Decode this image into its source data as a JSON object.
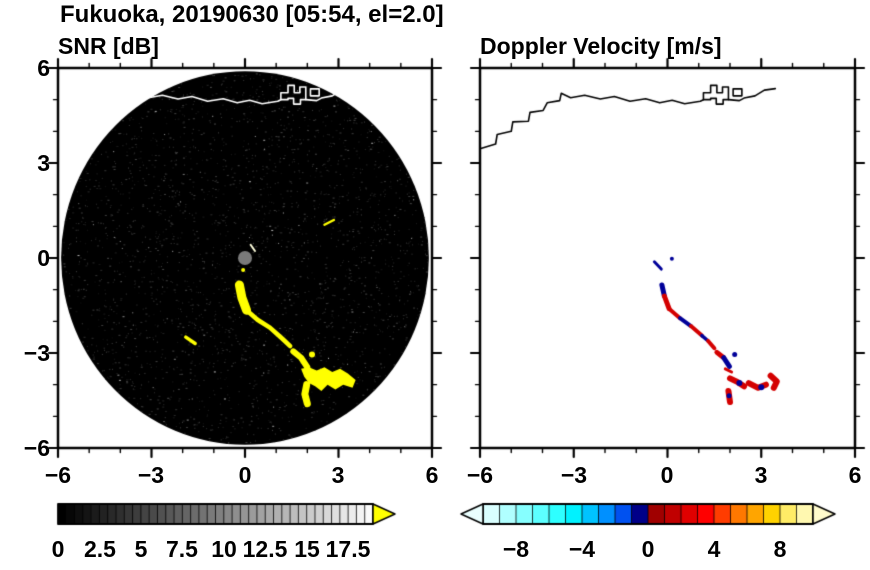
{
  "title": "Fukuoka, 20190630 [05:54, el=2.0]",
  "panels": {
    "snr": {
      "title": "SNR [dB]",
      "x_ticks": [
        "−6",
        "−3",
        "0",
        "3",
        "6"
      ],
      "y_ticks": [
        "6",
        "3",
        "0",
        "−3",
        "−6"
      ],
      "colorbar_labels": [
        "0",
        "2.5",
        "5",
        "7.5",
        "10",
        "12.5",
        "15",
        "17.5"
      ]
    },
    "doppler": {
      "title": "Doppler Velocity [m/s]",
      "x_ticks": [
        "−6",
        "−3",
        "0",
        "3",
        "6"
      ],
      "colorbar_labels": [
        "−8",
        "−4",
        "0",
        "4",
        "8"
      ]
    }
  },
  "axes": {
    "xlim": [
      -6,
      6
    ],
    "ylim": [
      -6,
      6
    ],
    "major_ticks": [
      -6,
      -3,
      0,
      3,
      6
    ],
    "minor_tick_step": 1
  },
  "coastline": {
    "main": [
      [
        -6.0,
        3.45
      ],
      [
        -5.5,
        3.6
      ],
      [
        -5.45,
        3.9
      ],
      [
        -5.0,
        4.0
      ],
      [
        -4.95,
        4.3
      ],
      [
        -4.45,
        4.32
      ],
      [
        -4.4,
        4.6
      ],
      [
        -3.98,
        4.66
      ],
      [
        -3.85,
        4.9
      ],
      [
        -3.45,
        4.97
      ],
      [
        -3.4,
        5.2
      ],
      [
        -3.1,
        5.06
      ],
      [
        -2.65,
        5.14
      ],
      [
        -2.15,
        5.02
      ],
      [
        -1.7,
        5.1
      ],
      [
        -1.2,
        4.95
      ],
      [
        -0.7,
        5.03
      ],
      [
        -0.25,
        4.9
      ],
      [
        0.15,
        4.98
      ],
      [
        0.55,
        4.87
      ],
      [
        1.05,
        4.95
      ],
      [
        1.15,
        5.0
      ]
    ],
    "east": [
      [
        1.95,
        5.0
      ],
      [
        2.3,
        4.97
      ],
      [
        2.45,
        5.05
      ],
      [
        2.8,
        5.12
      ],
      [
        3.1,
        5.3
      ],
      [
        3.45,
        5.35
      ]
    ],
    "harbor": [
      [
        1.15,
        5.0
      ],
      [
        1.15,
        5.22
      ],
      [
        1.38,
        5.22
      ],
      [
        1.38,
        5.45
      ],
      [
        1.58,
        5.45
      ],
      [
        1.58,
        5.22
      ],
      [
        1.76,
        5.22
      ],
      [
        1.76,
        5.4
      ],
      [
        1.95,
        5.4
      ],
      [
        1.95,
        5.0
      ],
      [
        1.78,
        5.0
      ],
      [
        1.78,
        4.86
      ],
      [
        1.56,
        4.86
      ],
      [
        1.56,
        5.04
      ],
      [
        1.38,
        5.04
      ],
      [
        1.38,
        5.0
      ]
    ],
    "islet": [
      [
        2.1,
        5.12
      ],
      [
        2.38,
        5.12
      ],
      [
        2.38,
        5.34
      ],
      [
        2.1,
        5.34
      ]
    ]
  },
  "chart_data": [
    {
      "type": "heatmap",
      "title": "SNR [dB]",
      "xlim": [
        -6,
        6
      ],
      "ylim": [
        -6,
        6
      ],
      "x_ticks": [
        -6,
        -3,
        0,
        3,
        6
      ],
      "y_ticks": [
        -6,
        -3,
        0,
        3,
        6
      ],
      "scan_disk": {
        "center": [
          0,
          0
        ],
        "radius": 5.9,
        "background_color": "#000000"
      },
      "center_marker": {
        "x": 0,
        "y": 0,
        "color": "#7a7a7a",
        "radius_px": 7
      },
      "colorbar": {
        "min": 0,
        "max": 19,
        "step": 0.5,
        "tick_labels": [
          0,
          2.5,
          5,
          7.5,
          10,
          12.5,
          15,
          17.5
        ],
        "palette": "black-to-white",
        "over_arrow_color": "#ffff00"
      },
      "echoes": [
        {
          "kind": "stroke",
          "w": 9,
          "pts": [
            [
              -0.18,
              -0.85
            ],
            [
              -0.1,
              -1.25
            ],
            [
              0.05,
              -1.65
            ]
          ]
        },
        {
          "kind": "stroke",
          "w": 4.5,
          "pts": [
            [
              0.05,
              -1.65
            ],
            [
              0.4,
              -1.95
            ],
            [
              0.8,
              -2.2
            ],
            [
              1.2,
              -2.55
            ],
            [
              1.45,
              -2.78
            ]
          ]
        },
        {
          "kind": "stroke",
          "w": 6,
          "pts": [
            [
              1.55,
              -2.95
            ],
            [
              1.8,
              -3.15
            ],
            [
              2.0,
              -3.45
            ]
          ]
        },
        {
          "kind": "dot",
          "r": 3,
          "pt": [
            2.15,
            -3.05
          ]
        },
        {
          "kind": "poly",
          "pts": [
            [
              1.8,
              -3.5
            ],
            [
              2.05,
              -3.45
            ],
            [
              2.3,
              -3.55
            ],
            [
              2.55,
              -3.45
            ],
            [
              2.8,
              -3.6
            ],
            [
              3.05,
              -3.5
            ],
            [
              3.3,
              -3.65
            ],
            [
              3.55,
              -3.85
            ],
            [
              3.45,
              -4.1
            ],
            [
              3.15,
              -4.0
            ],
            [
              2.9,
              -4.15
            ],
            [
              2.65,
              -4.0
            ],
            [
              2.45,
              -4.2
            ],
            [
              2.25,
              -4.05
            ],
            [
              2.05,
              -3.95
            ],
            [
              1.9,
              -3.75
            ]
          ]
        },
        {
          "kind": "stroke",
          "w": 7,
          "pts": [
            [
              1.98,
              -4.0
            ],
            [
              1.92,
              -4.3
            ],
            [
              2.0,
              -4.6
            ]
          ]
        },
        {
          "kind": "stroke",
          "w": 3.5,
          "pts": [
            [
              -1.9,
              -2.5
            ],
            [
              -1.6,
              -2.7
            ]
          ]
        },
        {
          "kind": "stroke",
          "w": 2.5,
          "pts": [
            [
              2.55,
              1.05
            ],
            [
              2.85,
              1.2
            ]
          ]
        },
        {
          "kind": "dot",
          "r": 2,
          "pt": [
            -0.06,
            -0.38
          ]
        },
        {
          "kind": "stroke",
          "w": 2,
          "pts": [
            [
              0.18,
              0.42
            ],
            [
              0.32,
              0.22
            ]
          ],
          "color": "#ffffdd"
        }
      ]
    },
    {
      "type": "heatmap",
      "title": "Doppler Velocity [m/s]",
      "xlim": [
        -6,
        6
      ],
      "ylim": [
        -6,
        6
      ],
      "x_ticks": [
        -6,
        -3,
        0,
        3,
        6
      ],
      "y_ticks": [
        -6,
        -3,
        0,
        3,
        6
      ],
      "background_color": "#ffffff",
      "echo_colors": {
        "pos": "#d40000",
        "neg": "#000099"
      },
      "colorbar": {
        "min": -10,
        "max": 10,
        "step": 1,
        "tick_labels": [
          -8,
          -4,
          0,
          4,
          8
        ],
        "palette": [
          "#d9ffff",
          "#b0ffff",
          "#86ffff",
          "#5cffff",
          "#2effff",
          "#00f2ff",
          "#00c3ff",
          "#0090ff",
          "#0051f0",
          "#000088",
          "#a00000",
          "#c00000",
          "#e00000",
          "#ff0000",
          "#ff3c00",
          "#ff7800",
          "#ffa500",
          "#ffd200",
          "#ffec66",
          "#fff8b0"
        ],
        "under_arrow_color": "#eaffff",
        "over_arrow_color": "#fffbcc"
      },
      "echoes": [
        {
          "kind": "stroke",
          "w": 5,
          "sign": "neg",
          "pts": [
            [
              -0.18,
              -0.85
            ],
            [
              -0.1,
              -1.2
            ]
          ]
        },
        {
          "kind": "stroke",
          "w": 5,
          "sign": "pos",
          "pts": [
            [
              -0.1,
              -1.2
            ],
            [
              0.05,
              -1.6
            ]
          ]
        },
        {
          "kind": "stroke",
          "w": 4,
          "sign": "pos",
          "pts": [
            [
              0.05,
              -1.6
            ],
            [
              0.4,
              -1.9
            ]
          ]
        },
        {
          "kind": "stroke",
          "w": 4,
          "sign": "neg",
          "pts": [
            [
              0.4,
              -1.9
            ],
            [
              0.75,
              -2.15
            ]
          ]
        },
        {
          "kind": "stroke",
          "w": 4,
          "sign": "pos",
          "pts": [
            [
              0.75,
              -2.15
            ],
            [
              1.1,
              -2.45
            ]
          ]
        },
        {
          "kind": "stroke",
          "w": 3.5,
          "sign": "neg",
          "pts": [
            [
              1.1,
              -2.45
            ],
            [
              1.3,
              -2.62
            ]
          ]
        },
        {
          "kind": "stroke",
          "w": 4,
          "sign": "pos",
          "pts": [
            [
              1.3,
              -2.62
            ],
            [
              1.5,
              -2.85
            ]
          ]
        },
        {
          "kind": "stroke",
          "w": 5,
          "sign": "pos",
          "pts": [
            [
              1.58,
              -2.98
            ],
            [
              1.8,
              -3.15
            ]
          ]
        },
        {
          "kind": "stroke",
          "w": 5,
          "sign": "neg",
          "pts": [
            [
              1.8,
              -3.15
            ],
            [
              1.98,
              -3.42
            ]
          ]
        },
        {
          "kind": "dot",
          "r": 2.5,
          "sign": "neg",
          "pt": [
            2.15,
            -3.05
          ]
        },
        {
          "kind": "stroke",
          "w": 3,
          "sign": "pos",
          "pts": [
            [
              1.85,
              -3.5
            ],
            [
              2.05,
              -3.6
            ]
          ]
        },
        {
          "kind": "stroke",
          "w": 6,
          "sign": "pos",
          "pts": [
            [
              2.0,
              -3.8
            ],
            [
              2.25,
              -3.92
            ],
            [
              2.45,
              -4.05
            ]
          ]
        },
        {
          "kind": "dot",
          "r": 3,
          "sign": "neg",
          "pt": [
            2.3,
            -3.95
          ]
        },
        {
          "kind": "stroke",
          "w": 6,
          "sign": "pos",
          "pts": [
            [
              2.6,
              -3.95
            ],
            [
              2.9,
              -4.1
            ],
            [
              3.15,
              -4.0
            ]
          ]
        },
        {
          "kind": "dot",
          "r": 3,
          "sign": "neg",
          "pt": [
            3.0,
            -4.08
          ]
        },
        {
          "kind": "stroke",
          "w": 6,
          "sign": "pos",
          "pts": [
            [
              3.3,
              -3.72
            ],
            [
              3.5,
              -3.9
            ],
            [
              3.4,
              -4.1
            ]
          ]
        },
        {
          "kind": "stroke",
          "w": 6,
          "sign": "pos",
          "pts": [
            [
              1.95,
              -4.2
            ],
            [
              2.0,
              -4.55
            ]
          ]
        },
        {
          "kind": "dot",
          "r": 2.5,
          "sign": "neg",
          "pt": [
            1.97,
            -4.35
          ]
        },
        {
          "kind": "stroke",
          "w": 3,
          "sign": "neg",
          "pts": [
            [
              -0.42,
              -0.12
            ],
            [
              -0.2,
              -0.35
            ]
          ]
        },
        {
          "kind": "dot",
          "r": 2,
          "sign": "neg",
          "pt": [
            0.14,
            -0.02
          ]
        }
      ]
    }
  ]
}
